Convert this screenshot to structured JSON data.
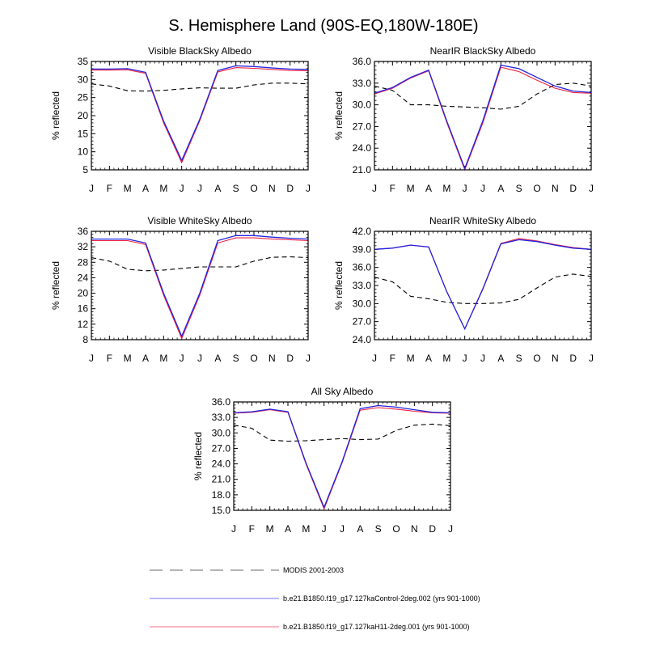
{
  "figure": {
    "title": "S. Hemisphere Land (90S-EQ,180W-180E)"
  },
  "legend": [
    {
      "label": "MODIS 2001-2003",
      "color": "#000000",
      "style": "dashed"
    },
    {
      "label": "b.e21.B1850.f19_g17.127kaControl-2deg.002 (yrs 901-1000)",
      "color": "#3333ee",
      "style": "solid"
    },
    {
      "label": "b.e21.B1850.f19_g17.127kaH11-2deg.001 (yrs 901-1000)",
      "color": "#ee3355",
      "style": "solid"
    }
  ],
  "colors": {
    "modis": "#000000",
    "control": "#2222dd",
    "h11": "#ee2244"
  },
  "chart_data": [
    {
      "type": "line",
      "title": "Visible BlackSky Albedo",
      "ylabel": "% reflected",
      "categories": [
        "J",
        "F",
        "M",
        "A",
        "M",
        "J",
        "J",
        "A",
        "S",
        "O",
        "N",
        "D",
        "J"
      ],
      "ylim": [
        5,
        35
      ],
      "yticks": [
        5,
        10,
        15,
        20,
        25,
        30,
        35
      ],
      "ytick_labels": [
        "5",
        "10",
        "15",
        "20",
        "25",
        "30",
        "35"
      ],
      "series": [
        {
          "name": "MODIS 2001-2003",
          "values": [
            28.8,
            28.2,
            26.9,
            26.8,
            27.0,
            27.4,
            27.7,
            27.6,
            27.6,
            28.5,
            29.0,
            29.0,
            28.8
          ]
        },
        {
          "name": "b.e21.B1850.f19_g17.127kaControl-2deg.002 (yrs 901-1000)",
          "values": [
            32.9,
            32.9,
            33.0,
            32.0,
            18.5,
            7.6,
            19.0,
            32.5,
            33.8,
            33.6,
            33.2,
            32.9,
            32.8
          ]
        },
        {
          "name": "b.e21.B1850.f19_g17.127kaH11-2deg.001 (yrs 901-1000)",
          "values": [
            32.6,
            32.6,
            32.7,
            31.7,
            18.0,
            7.0,
            18.6,
            32.1,
            33.3,
            33.1,
            32.8,
            32.5,
            32.4
          ]
        }
      ]
    },
    {
      "type": "line",
      "title": "NearIR BlackSky Albedo",
      "ylabel": "% reflected",
      "categories": [
        "J",
        "F",
        "M",
        "A",
        "M",
        "J",
        "J",
        "A",
        "S",
        "O",
        "N",
        "D",
        "J"
      ],
      "ylim": [
        21,
        36
      ],
      "yticks": [
        21,
        24,
        27,
        30,
        33,
        36
      ],
      "ytick_labels": [
        "21.0",
        "24.0",
        "27.0",
        "30.0",
        "33.0",
        "36.0"
      ],
      "series": [
        {
          "name": "MODIS 2001-2003",
          "values": [
            32.6,
            32.0,
            30.0,
            30.0,
            29.8,
            29.7,
            29.6,
            29.4,
            29.8,
            31.5,
            32.8,
            33.0,
            32.6
          ]
        },
        {
          "name": "b.e21.B1850.f19_g17.127kaControl-2deg.002 (yrs 901-1000)",
          "values": [
            31.6,
            32.4,
            33.8,
            34.8,
            27.8,
            21.2,
            27.8,
            35.5,
            35.0,
            33.8,
            32.6,
            31.9,
            31.7
          ]
        },
        {
          "name": "b.e21.B1850.f19_g17.127kaH11-2deg.001 (yrs 901-1000)",
          "values": [
            31.5,
            32.3,
            33.7,
            34.7,
            27.6,
            21.0,
            27.5,
            35.2,
            34.6,
            33.4,
            32.3,
            31.7,
            31.6
          ]
        }
      ]
    },
    {
      "type": "line",
      "title": "Visible WhiteSky Albedo",
      "ylabel": "% reflected",
      "categories": [
        "J",
        "F",
        "M",
        "A",
        "M",
        "J",
        "J",
        "A",
        "S",
        "O",
        "N",
        "D",
        "J"
      ],
      "ylim": [
        8,
        36
      ],
      "yticks": [
        8,
        12,
        16,
        20,
        24,
        28,
        32,
        36
      ],
      "ytick_labels": [
        "8",
        "12",
        "16",
        "20",
        "24",
        "28",
        "32",
        "36"
      ],
      "series": [
        {
          "name": "MODIS 2001-2003",
          "values": [
            29.2,
            28.3,
            26.2,
            25.8,
            26.0,
            26.4,
            26.8,
            26.8,
            26.8,
            28.3,
            29.3,
            29.4,
            29.2
          ]
        },
        {
          "name": "b.e21.B1850.f19_g17.127kaControl-2deg.002 (yrs 901-1000)",
          "values": [
            34.0,
            34.0,
            34.0,
            33.0,
            20.0,
            8.9,
            20.0,
            33.6,
            34.9,
            34.9,
            34.5,
            34.2,
            34.0
          ]
        },
        {
          "name": "b.e21.B1850.f19_g17.127kaH11-2deg.001 (yrs 901-1000)",
          "values": [
            33.6,
            33.6,
            33.6,
            32.6,
            19.5,
            8.3,
            19.5,
            33.0,
            34.3,
            34.3,
            34.0,
            33.8,
            33.6
          ]
        }
      ]
    },
    {
      "type": "line",
      "title": "NearIR WhiteSky Albedo",
      "ylabel": "% reflected",
      "categories": [
        "J",
        "F",
        "M",
        "A",
        "M",
        "J",
        "J",
        "A",
        "S",
        "O",
        "N",
        "D",
        "J"
      ],
      "ylim": [
        24,
        42
      ],
      "yticks": [
        24,
        27,
        30,
        33,
        36,
        39,
        42
      ],
      "ytick_labels": [
        "24.0",
        "27.0",
        "30.0",
        "33.0",
        "36.0",
        "39.0",
        "42.0"
      ],
      "series": [
        {
          "name": "MODIS 2001-2003",
          "values": [
            34.4,
            33.6,
            31.2,
            30.8,
            30.2,
            30.0,
            30.0,
            30.1,
            30.7,
            32.6,
            34.4,
            34.9,
            34.5
          ]
        },
        {
          "name": "b.e21.B1850.f19_g17.127kaControl-2deg.002 (yrs 901-1000)",
          "values": [
            39.0,
            39.2,
            39.7,
            39.4,
            32.0,
            25.8,
            32.4,
            39.9,
            40.6,
            40.3,
            39.7,
            39.2,
            39.0
          ]
        },
        {
          "name": "b.e21.B1850.f19_g17.127kaH11-2deg.001 (yrs 901-1000)",
          "values": [
            39.0,
            39.2,
            39.7,
            39.4,
            32.0,
            25.8,
            32.5,
            40.0,
            40.8,
            40.4,
            39.8,
            39.3,
            39.0
          ]
        }
      ]
    },
    {
      "type": "line",
      "title": "All Sky Albedo",
      "ylabel": "% reflected",
      "categories": [
        "J",
        "F",
        "M",
        "A",
        "M",
        "J",
        "J",
        "A",
        "S",
        "O",
        "N",
        "D",
        "J"
      ],
      "ylim": [
        15,
        36
      ],
      "yticks": [
        15,
        18,
        21,
        24,
        27,
        30,
        33,
        36
      ],
      "ytick_labels": [
        "15.0",
        "18.0",
        "21.0",
        "24.0",
        "27.0",
        "30.0",
        "33.0",
        "36.0"
      ],
      "series": [
        {
          "name": "MODIS 2001-2003",
          "values": [
            31.5,
            30.9,
            28.6,
            28.4,
            28.5,
            28.7,
            28.9,
            28.7,
            28.8,
            30.5,
            31.5,
            31.7,
            31.4
          ]
        },
        {
          "name": "b.e21.B1850.f19_g17.127kaControl-2deg.002 (yrs 901-1000)",
          "values": [
            33.9,
            34.1,
            34.6,
            34.1,
            24.2,
            15.6,
            24.4,
            34.7,
            35.3,
            35.0,
            34.5,
            34.0,
            33.9
          ]
        },
        {
          "name": "b.e21.B1850.f19_g17.127kaH11-2deg.001 (yrs 901-1000)",
          "values": [
            33.8,
            34.0,
            34.5,
            34.0,
            24.0,
            15.3,
            24.2,
            34.4,
            34.9,
            34.6,
            34.2,
            33.9,
            33.8
          ]
        }
      ]
    }
  ]
}
